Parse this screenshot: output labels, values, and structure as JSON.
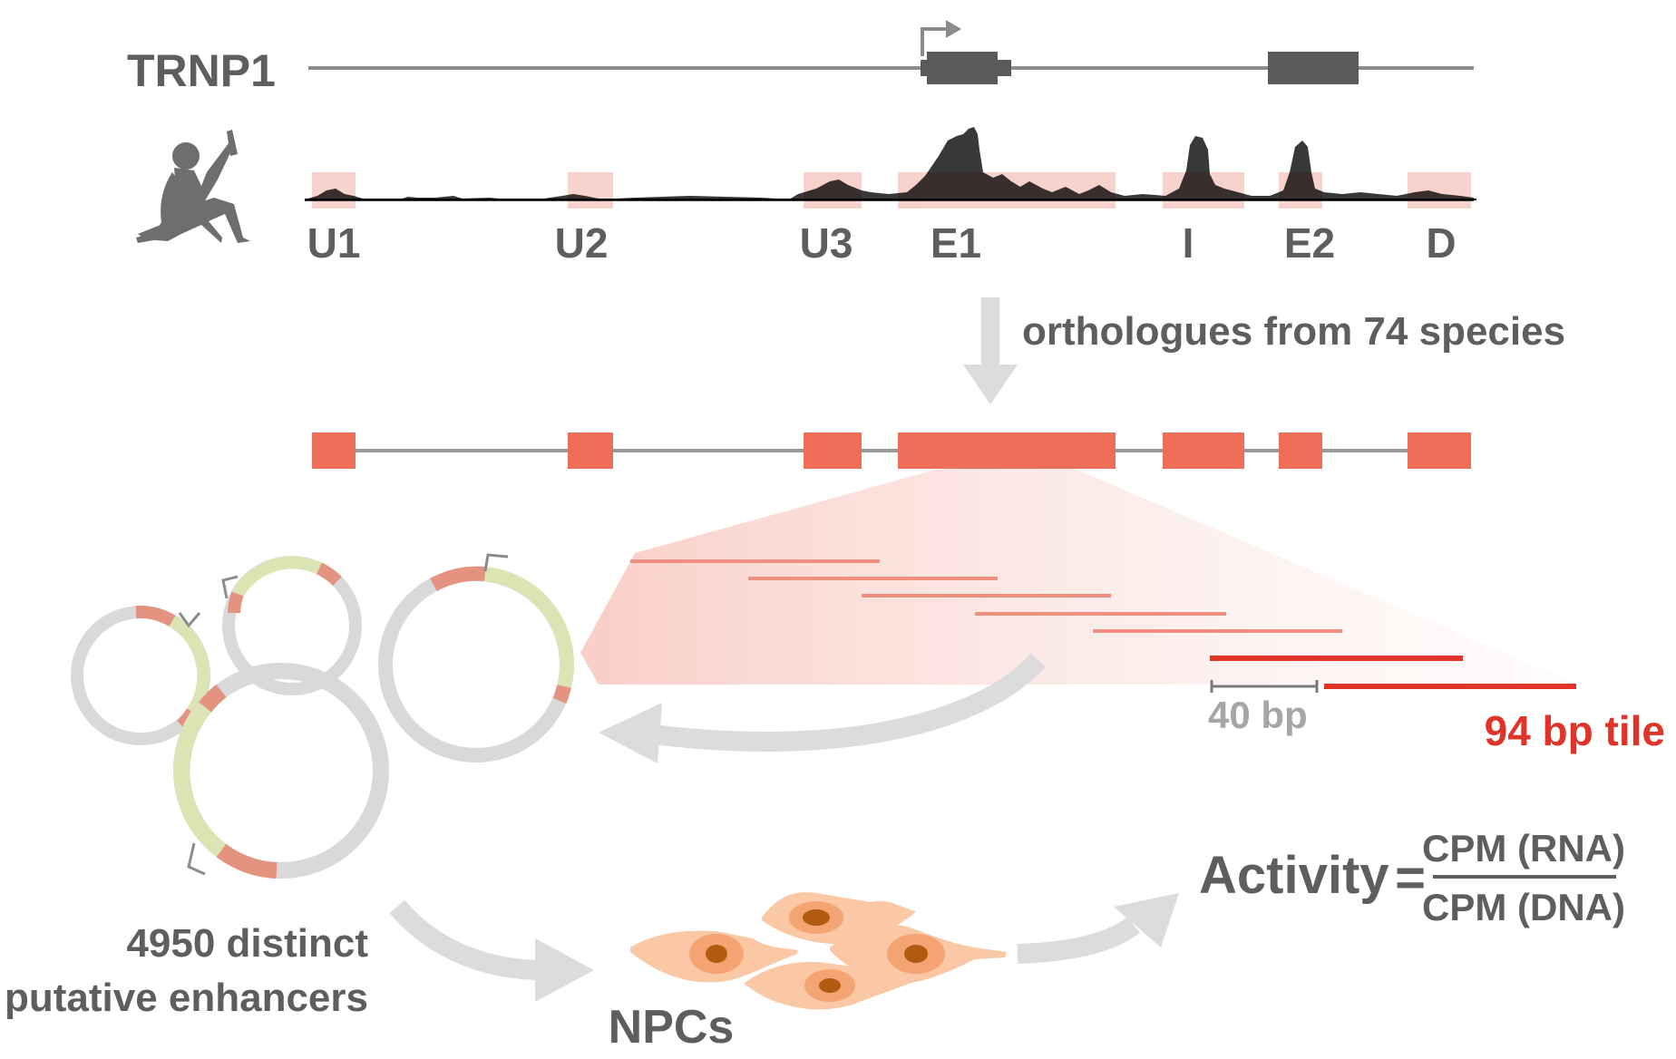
{
  "gene": {
    "name": "TRNP1"
  },
  "regions": [
    "U1",
    "U2",
    "U3",
    "E1",
    "I",
    "E2",
    "D"
  ],
  "arrow_label": "orthologues from 74 species",
  "tiles": {
    "spacing_label": "40 bp",
    "tile_label": "94 bp tile"
  },
  "library": {
    "line1": "4950 distinct",
    "line2": "putative enhancers"
  },
  "cells": {
    "label": "NPCs"
  },
  "activity": {
    "lhs": "Activity",
    "eq": "=",
    "numerator": "CPM (RNA)",
    "denominator": "CPM (DNA)"
  },
  "colors": {
    "region_fill": "#ee6e5a",
    "region_highlight": "#f7cdc6",
    "tile_dark": "#e0332a",
    "text_grey": "#5e5e5e",
    "arrow_grey": "#dcdcdc",
    "plasmid_grey": "#d9d9d9",
    "plasmid_green": "#dde4b4",
    "plasmid_pink": "#e39380",
    "cell_fill": "#fbc8a6"
  }
}
